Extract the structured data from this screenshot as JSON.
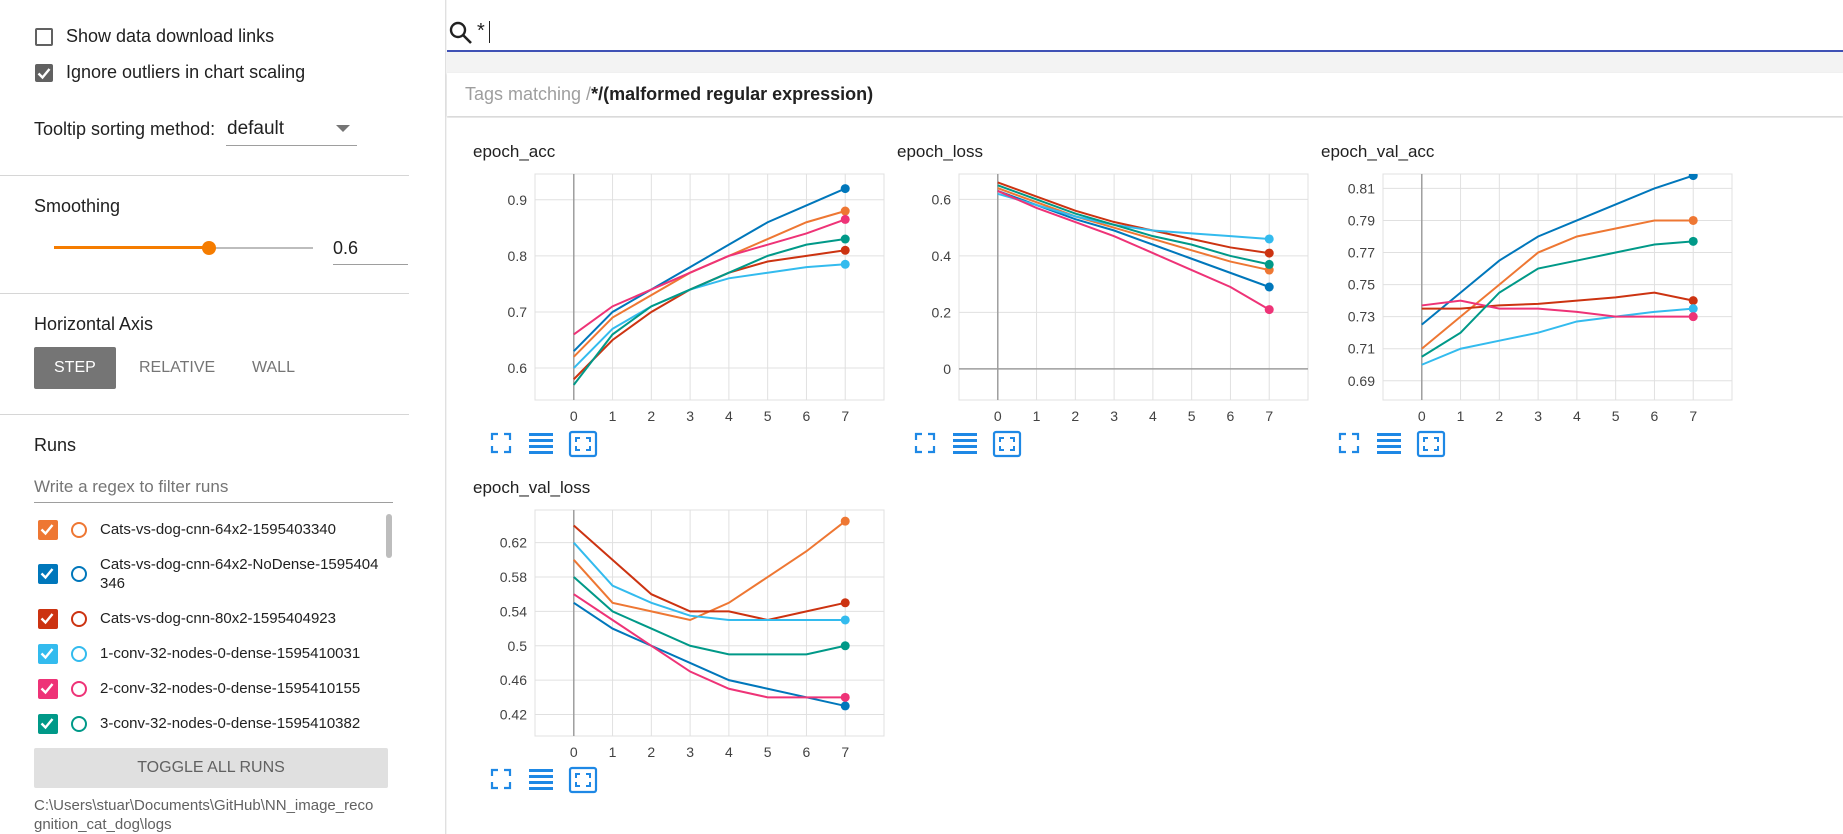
{
  "sidebar": {
    "show_download": {
      "label": "Show data download links",
      "checked": false
    },
    "ignore_outliers": {
      "label": "Ignore outliers in chart scaling",
      "checked": true
    },
    "tooltip_label": "Tooltip sorting method:",
    "tooltip_value": "default",
    "smoothing_label": "Smoothing",
    "smoothing_value": 0.6,
    "horizontal_axis_label": "Horizontal Axis",
    "axis_options": [
      "STEP",
      "RELATIVE",
      "WALL"
    ],
    "axis_selected": 0,
    "runs_label": "Runs",
    "runs_filter_placeholder": "Write a regex to filter runs",
    "runs": [
      {
        "name": "Cats-vs-dog-cnn-64x2-1595403340",
        "color": "#ee7733",
        "checked": true
      },
      {
        "name": "Cats-vs-dog-cnn-64x2-NoDense-1595404346",
        "color": "#0077bb",
        "checked": true
      },
      {
        "name": "Cats-vs-dog-cnn-80x2-1595404923",
        "color": "#cc3311",
        "checked": true
      },
      {
        "name": "1-conv-32-nodes-0-dense-1595410031",
        "color": "#33bbee",
        "checked": true
      },
      {
        "name": "2-conv-32-nodes-0-dense-1595410155",
        "color": "#ee3377",
        "checked": true
      },
      {
        "name": "3-conv-32-nodes-0-dense-1595410382",
        "color": "#009988",
        "checked": true
      }
    ],
    "toggle_all": "TOGGLE ALL RUNS",
    "logdir": "C:\\Users\\stuar\\Documents\\GitHub\\NN_image_recognition_cat_dog\\logs"
  },
  "search_query": "*",
  "tags": {
    "prefix": "Tags matching /",
    "pattern": "*/",
    "message": "(malformed regular expression)"
  },
  "chart_data": [
    {
      "type": "line",
      "title": "epoch_acc",
      "x": [
        0,
        1,
        2,
        3,
        4,
        5,
        6,
        7
      ],
      "xlim": [
        -1,
        8
      ],
      "xticks": [
        0,
        1,
        2,
        3,
        4,
        5,
        6,
        7
      ],
      "ylim": [
        0.543,
        0.946
      ],
      "yticks": [
        0.6,
        0.7,
        0.8,
        0.9
      ],
      "grid": true,
      "series": [
        {
          "color": "#ee7733",
          "values": [
            0.62,
            0.69,
            0.73,
            0.77,
            0.8,
            0.83,
            0.86,
            0.88
          ]
        },
        {
          "color": "#0077bb",
          "values": [
            0.63,
            0.7,
            0.74,
            0.78,
            0.82,
            0.86,
            0.89,
            0.92
          ]
        },
        {
          "color": "#cc3311",
          "values": [
            0.58,
            0.65,
            0.7,
            0.74,
            0.77,
            0.79,
            0.8,
            0.81
          ]
        },
        {
          "color": "#33bbee",
          "values": [
            0.6,
            0.67,
            0.71,
            0.74,
            0.76,
            0.77,
            0.78,
            0.785
          ]
        },
        {
          "color": "#ee3377",
          "values": [
            0.66,
            0.71,
            0.74,
            0.77,
            0.8,
            0.82,
            0.84,
            0.865
          ]
        },
        {
          "color": "#009988",
          "values": [
            0.57,
            0.66,
            0.71,
            0.74,
            0.77,
            0.8,
            0.82,
            0.83
          ]
        }
      ]
    },
    {
      "type": "line",
      "title": "epoch_loss",
      "x": [
        0,
        1,
        2,
        3,
        4,
        5,
        6,
        7
      ],
      "xlim": [
        -1,
        8
      ],
      "xticks": [
        0,
        1,
        2,
        3,
        4,
        5,
        6,
        7
      ],
      "ylim": [
        -0.11,
        0.69
      ],
      "yticks": [
        0,
        0.2,
        0.4,
        0.6
      ],
      "grid": true,
      "series": [
        {
          "color": "#ee7733",
          "values": [
            0.64,
            0.59,
            0.54,
            0.5,
            0.46,
            0.42,
            0.38,
            0.35
          ]
        },
        {
          "color": "#0077bb",
          "values": [
            0.63,
            0.58,
            0.53,
            0.49,
            0.44,
            0.39,
            0.34,
            0.29
          ]
        },
        {
          "color": "#cc3311",
          "values": [
            0.66,
            0.61,
            0.56,
            0.52,
            0.49,
            0.46,
            0.43,
            0.41
          ]
        },
        {
          "color": "#33bbee",
          "values": [
            0.62,
            0.58,
            0.54,
            0.51,
            0.49,
            0.48,
            0.47,
            0.46
          ]
        },
        {
          "color": "#ee3377",
          "values": [
            0.63,
            0.57,
            0.52,
            0.47,
            0.41,
            0.35,
            0.29,
            0.21
          ]
        },
        {
          "color": "#009988",
          "values": [
            0.65,
            0.6,
            0.55,
            0.51,
            0.47,
            0.44,
            0.4,
            0.37
          ]
        }
      ]
    },
    {
      "type": "line",
      "title": "epoch_val_acc",
      "x": [
        0,
        1,
        2,
        3,
        4,
        5,
        6,
        7
      ],
      "xlim": [
        -1,
        8
      ],
      "xticks": [
        0,
        1,
        2,
        3,
        4,
        5,
        6,
        7
      ],
      "ylim": [
        0.678,
        0.819
      ],
      "yticks": [
        0.69,
        0.71,
        0.73,
        0.75,
        0.77,
        0.79,
        0.81
      ],
      "grid": true,
      "series": [
        {
          "color": "#ee7733",
          "values": [
            0.71,
            0.73,
            0.75,
            0.77,
            0.78,
            0.785,
            0.79,
            0.79
          ]
        },
        {
          "color": "#0077bb",
          "values": [
            0.725,
            0.745,
            0.765,
            0.78,
            0.79,
            0.8,
            0.81,
            0.818
          ]
        },
        {
          "color": "#cc3311",
          "values": [
            0.735,
            0.735,
            0.737,
            0.738,
            0.74,
            0.742,
            0.745,
            0.74
          ]
        },
        {
          "color": "#33bbee",
          "values": [
            0.7,
            0.71,
            0.715,
            0.72,
            0.727,
            0.73,
            0.733,
            0.735
          ]
        },
        {
          "color": "#ee3377",
          "values": [
            0.737,
            0.74,
            0.735,
            0.735,
            0.733,
            0.73,
            0.73,
            0.73
          ]
        },
        {
          "color": "#009988",
          "values": [
            0.705,
            0.72,
            0.745,
            0.76,
            0.765,
            0.77,
            0.775,
            0.777
          ]
        }
      ]
    },
    {
      "type": "line",
      "title": "epoch_val_loss",
      "x": [
        0,
        1,
        2,
        3,
        4,
        5,
        6,
        7
      ],
      "xlim": [
        -1,
        8
      ],
      "xticks": [
        0,
        1,
        2,
        3,
        4,
        5,
        6,
        7
      ],
      "ylim": [
        0.395,
        0.658
      ],
      "yticks": [
        0.42,
        0.46,
        0.5,
        0.54,
        0.58,
        0.62
      ],
      "grid": true,
      "series": [
        {
          "color": "#ee7733",
          "values": [
            0.6,
            0.55,
            0.54,
            0.53,
            0.55,
            0.58,
            0.61,
            0.645
          ]
        },
        {
          "color": "#0077bb",
          "values": [
            0.55,
            0.52,
            0.5,
            0.48,
            0.46,
            0.45,
            0.44,
            0.43
          ]
        },
        {
          "color": "#cc3311",
          "values": [
            0.64,
            0.6,
            0.56,
            0.54,
            0.54,
            0.53,
            0.54,
            0.55
          ]
        },
        {
          "color": "#33bbee",
          "values": [
            0.62,
            0.57,
            0.55,
            0.535,
            0.53,
            0.53,
            0.53,
            0.53
          ]
        },
        {
          "color": "#ee3377",
          "values": [
            0.56,
            0.53,
            0.5,
            0.47,
            0.45,
            0.44,
            0.44,
            0.44
          ]
        },
        {
          "color": "#009988",
          "values": [
            0.58,
            0.54,
            0.52,
            0.5,
            0.49,
            0.49,
            0.49,
            0.5
          ]
        }
      ]
    }
  ]
}
